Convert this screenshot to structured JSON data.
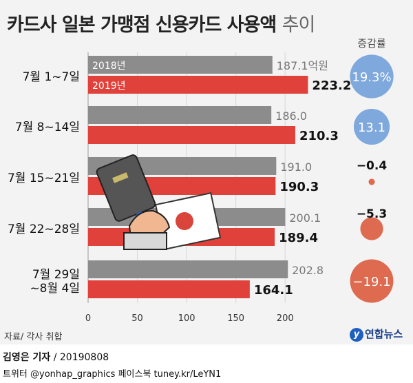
{
  "title": {
    "main": "카드사 일본 가맹점 신용카드 사용액",
    "suffix": "추이"
  },
  "chart_data": {
    "type": "bar",
    "orientation": "horizontal",
    "title": "카드사 일본 가맹점 신용카드 사용액 추이",
    "unit": "억원",
    "categories": [
      [
        "7월 1~7일"
      ],
      [
        "7월 8~14일"
      ],
      [
        "7월 15~21일"
      ],
      [
        "7월 22~28일"
      ],
      [
        "7월 29일",
        "~8월 4일"
      ]
    ],
    "series": [
      {
        "name": "2018년",
        "color": "#8c8c8c",
        "values": [
          187.1,
          186.0,
          191.0,
          200.1,
          202.8
        ],
        "labels": [
          "187.1",
          "186.0",
          "191.0",
          "200.1",
          "202.8"
        ]
      },
      {
        "name": "2019년",
        "color": "#e0413a",
        "values": [
          223.2,
          210.3,
          190.3,
          189.4,
          164.1
        ],
        "labels": [
          "223.2",
          "210.3",
          "190.3",
          "189.4",
          "164.1"
        ]
      }
    ],
    "change_title": "증감률",
    "changes": [
      19.3,
      13.1,
      -0.4,
      -5.3,
      -19.1
    ],
    "change_labels": [
      "19.3%",
      "13.1",
      "−0.4",
      "−5.3",
      "−19.1"
    ],
    "xlim": [
      0,
      225
    ],
    "xticks": [
      0,
      50,
      100,
      150,
      200
    ],
    "positive_color": "#7fa8dc",
    "negative_color": "#de6a4f",
    "grid": true
  },
  "source": "자료/ 각사 취합",
  "logo": "연합뉴스",
  "credit": {
    "reporter": "김영은 기자",
    "date": " / 20190808"
  },
  "social": "트위터 @yonhap_graphics  페이스북 tuney.kr/LeYN1"
}
